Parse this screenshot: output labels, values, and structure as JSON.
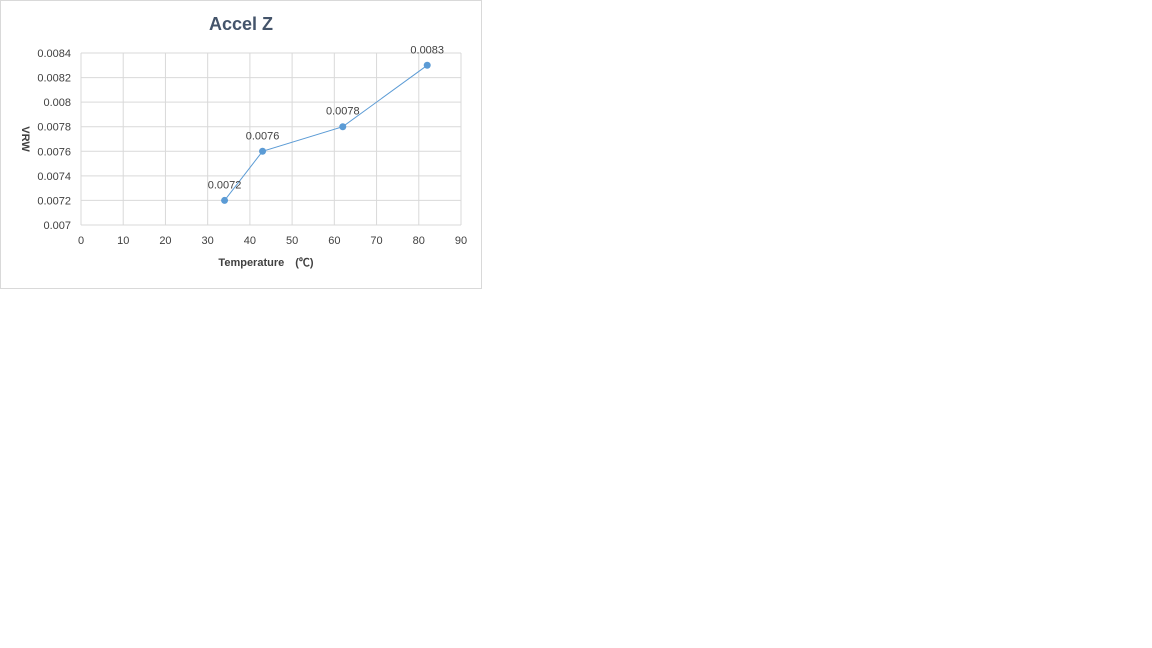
{
  "chart_data": {
    "type": "line",
    "title": "Accel Z",
    "xlabel": "Temperature　(℃)",
    "ylabel": "VRW",
    "xlim": [
      0,
      90
    ],
    "ylim": [
      0.007,
      0.0084
    ],
    "x_ticks": [
      "0",
      "10",
      "20",
      "30",
      "40",
      "50",
      "60",
      "70",
      "80",
      "90"
    ],
    "y_ticks": [
      "0.007",
      "0.0072",
      "0.0074",
      "0.0076",
      "0.0078",
      "0.008",
      "0.0082",
      "0.0084"
    ],
    "grid": true,
    "series": [
      {
        "x": [
          34,
          43,
          62,
          82
        ],
        "y": [
          0.0072,
          0.0076,
          0.0078,
          0.0083
        ],
        "labels": [
          "0.0072",
          "0.0076",
          "0.0078",
          "0.0083"
        ]
      }
    ],
    "colors": {
      "series": "#5b9bd5",
      "grid": "#d9d9d9",
      "title": "#44546a"
    }
  }
}
